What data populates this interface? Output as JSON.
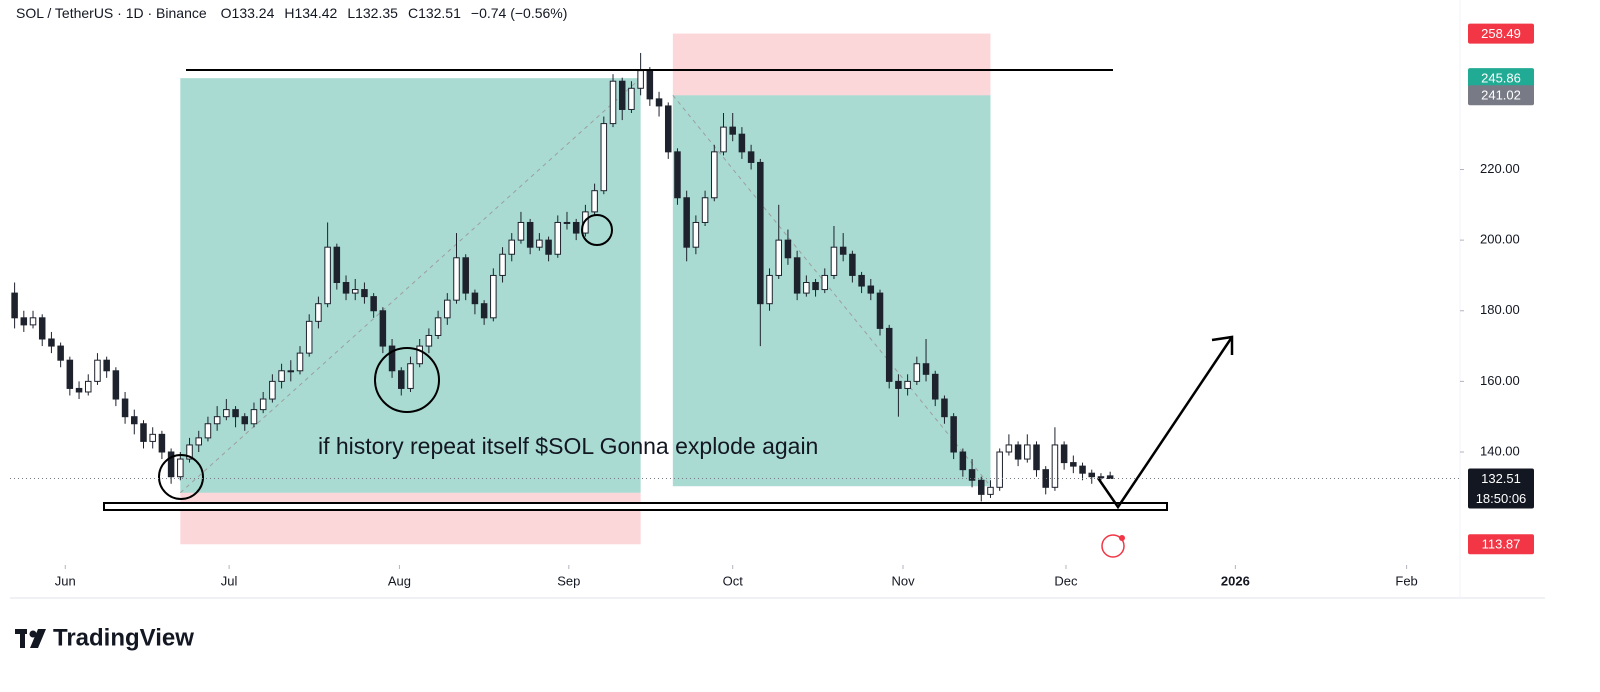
{
  "chart_data": {
    "type": "candlestick",
    "header": {
      "symbol": "SOL / TetherUS · 1D · Binance",
      "ohlc": [
        {
          "label": "O",
          "value": 133.24
        },
        {
          "label": "H",
          "value": 134.42
        },
        {
          "label": "L",
          "value": 132.35
        },
        {
          "label": "C",
          "value": 132.51
        }
      ],
      "change": "−0.74 (−0.56%)"
    },
    "annotation": "if history repeat itself $SOL Gonna explode again",
    "countdown": "18:50:06",
    "brand": "TradingView",
    "up_color": "#ffffff",
    "down_color": "#1e222d",
    "outline_color": "#1e222d",
    "xlim": [
      -0.5,
      157
    ],
    "xticks": [
      {
        "value": 5.5,
        "label": "Jun"
      },
      {
        "value": 23.3,
        "label": "Jul"
      },
      {
        "value": 41.8,
        "label": "Aug"
      },
      {
        "value": 60.2,
        "label": "Sep"
      },
      {
        "value": 78,
        "label": "Oct"
      },
      {
        "value": 96.5,
        "label": "Nov"
      },
      {
        "value": 114.2,
        "label": "Dec"
      },
      {
        "value": 132.6,
        "label": "2026"
      },
      {
        "value": 151.2,
        "label": "Feb"
      }
    ],
    "ylim": [
      108,
      268
    ],
    "yticks": [
      {
        "value": 140,
        "label": "140.00"
      },
      {
        "value": 160,
        "label": "160.00"
      },
      {
        "value": 180,
        "label": "180.00"
      },
      {
        "value": 200,
        "label": "200.00"
      },
      {
        "value": 220,
        "label": "220.00"
      }
    ],
    "candles": [
      [
        185,
        188,
        175,
        178
      ],
      [
        178,
        180,
        174,
        176
      ],
      [
        176,
        180,
        175,
        178
      ],
      [
        178,
        179,
        170,
        172
      ],
      [
        172,
        174,
        168,
        170
      ],
      [
        170,
        171,
        164,
        166
      ],
      [
        166,
        167,
        156,
        158
      ],
      [
        158,
        160,
        155,
        157
      ],
      [
        157,
        162,
        156,
        160
      ],
      [
        160,
        168,
        159,
        166
      ],
      [
        166,
        167,
        161,
        163
      ],
      [
        163,
        164,
        153,
        155
      ],
      [
        155,
        157,
        148,
        150
      ],
      [
        150,
        152,
        145,
        148
      ],
      [
        148,
        149,
        141,
        143
      ],
      [
        143,
        147,
        141,
        145
      ],
      [
        145,
        146,
        138,
        140
      ],
      [
        140,
        141,
        131,
        133
      ],
      [
        133,
        140,
        132,
        138
      ],
      [
        138,
        144,
        137,
        142
      ],
      [
        142,
        146,
        140,
        144
      ],
      [
        144,
        150,
        143,
        148
      ],
      [
        148,
        153,
        146,
        150
      ],
      [
        150,
        155,
        149,
        152
      ],
      [
        152,
        153,
        147,
        150
      ],
      [
        150,
        151,
        146,
        148
      ],
      [
        148,
        154,
        147,
        152
      ],
      [
        152,
        157,
        151,
        155
      ],
      [
        155,
        162,
        154,
        160
      ],
      [
        160,
        165,
        158,
        163
      ],
      [
        163,
        166,
        160,
        163
      ],
      [
        163,
        170,
        162,
        168
      ],
      [
        168,
        179,
        167,
        177
      ],
      [
        177,
        184,
        175,
        182
      ],
      [
        182,
        205,
        181,
        198
      ],
      [
        198,
        199,
        186,
        188
      ],
      [
        188,
        190,
        183,
        185
      ],
      [
        185,
        189,
        183,
        186
      ],
      [
        186,
        188,
        182,
        184
      ],
      [
        184,
        185,
        178,
        180
      ],
      [
        180,
        181,
        168,
        170
      ],
      [
        170,
        172,
        161,
        163
      ],
      [
        163,
        164,
        156,
        158
      ],
      [
        158,
        167,
        157,
        165
      ],
      [
        165,
        172,
        164,
        170
      ],
      [
        170,
        175,
        168,
        173
      ],
      [
        173,
        180,
        172,
        178
      ],
      [
        178,
        185,
        176,
        183
      ],
      [
        183,
        202,
        182,
        195
      ],
      [
        195,
        196,
        183,
        185
      ],
      [
        185,
        186,
        179,
        182
      ],
      [
        182,
        183,
        176,
        178
      ],
      [
        178,
        192,
        177,
        190
      ],
      [
        190,
        198,
        188,
        196
      ],
      [
        196,
        202,
        194,
        200
      ],
      [
        200,
        208,
        199,
        205
      ],
      [
        205,
        206,
        196,
        198
      ],
      [
        198,
        202,
        197,
        200
      ],
      [
        200,
        201,
        194,
        196
      ],
      [
        196,
        207,
        195,
        205
      ],
      [
        205,
        208,
        203,
        205
      ],
      [
        205,
        206,
        200,
        202
      ],
      [
        202,
        210,
        201,
        208
      ],
      [
        208,
        216,
        207,
        214
      ],
      [
        214,
        235,
        213,
        233
      ],
      [
        233,
        247,
        232,
        245
      ],
      [
        245,
        246,
        234,
        237
      ],
      [
        237,
        245,
        236,
        243
      ],
      [
        243,
        253,
        241,
        248
      ],
      [
        248,
        249,
        238,
        240
      ],
      [
        240,
        242,
        235,
        238
      ],
      [
        238,
        239,
        223,
        225
      ],
      [
        225,
        226,
        210,
        212
      ],
      [
        212,
        214,
        194,
        198
      ],
      [
        198,
        207,
        196,
        205
      ],
      [
        205,
        214,
        204,
        212
      ],
      [
        212,
        227,
        211,
        225
      ],
      [
        225,
        236,
        224,
        232
      ],
      [
        232,
        236,
        228,
        230
      ],
      [
        230,
        232,
        223,
        225
      ],
      [
        225,
        227,
        220,
        222
      ],
      [
        222,
        223,
        170,
        182
      ],
      [
        182,
        192,
        180,
        190
      ],
      [
        190,
        210,
        189,
        200
      ],
      [
        200,
        203,
        193,
        195
      ],
      [
        195,
        197,
        183,
        185
      ],
      [
        185,
        190,
        184,
        188
      ],
      [
        188,
        189,
        184,
        186
      ],
      [
        186,
        192,
        185,
        190
      ],
      [
        190,
        204,
        189,
        198
      ],
      [
        198,
        202,
        194,
        196
      ],
      [
        196,
        197,
        188,
        190
      ],
      [
        190,
        191,
        185,
        187
      ],
      [
        187,
        189,
        183,
        185
      ],
      [
        185,
        186,
        173,
        175
      ],
      [
        175,
        176,
        158,
        160
      ],
      [
        160,
        162,
        150,
        158
      ],
      [
        158,
        162,
        156,
        160
      ],
      [
        160,
        167,
        159,
        165
      ],
      [
        165,
        172,
        160,
        162
      ],
      [
        162,
        163,
        153,
        155
      ],
      [
        155,
        156,
        148,
        150
      ],
      [
        150,
        151,
        138,
        140
      ],
      [
        140,
        141,
        133,
        135
      ],
      [
        135,
        138,
        130,
        132
      ],
      [
        132,
        133,
        126,
        128
      ],
      [
        128,
        132,
        127,
        130
      ],
      [
        130,
        141,
        129,
        140
      ],
      [
        140,
        145,
        139,
        142
      ],
      [
        142,
        143,
        136,
        138
      ],
      [
        138,
        145,
        137,
        142
      ],
      [
        142,
        143,
        133,
        135
      ],
      [
        135,
        136,
        128,
        130
      ],
      [
        130,
        147,
        129,
        142
      ],
      [
        142,
        143,
        135,
        137
      ],
      [
        137,
        139,
        134,
        136
      ],
      [
        136,
        137,
        132,
        134
      ],
      [
        134,
        135,
        131,
        133
      ],
      [
        133,
        134,
        132,
        133
      ],
      [
        133.24,
        134.42,
        132.35,
        132.51
      ]
    ],
    "positions": [
      {
        "from": 18,
        "to": 68,
        "entry": 128.46,
        "target": 245.86,
        "stop": 113.87,
        "entry_color": "#787b86",
        "target_color": "#22ab94",
        "stop_color": "#f23645"
      },
      {
        "from": 71.5,
        "to": 106,
        "entry": 241.02,
        "target": 130.31,
        "stop": 258.49,
        "entry_color": "#787b86",
        "target_color": "#22ab94",
        "stop_color": "#f23645"
      }
    ],
    "last_price": 132.51,
    "last_color": "#131722"
  }
}
